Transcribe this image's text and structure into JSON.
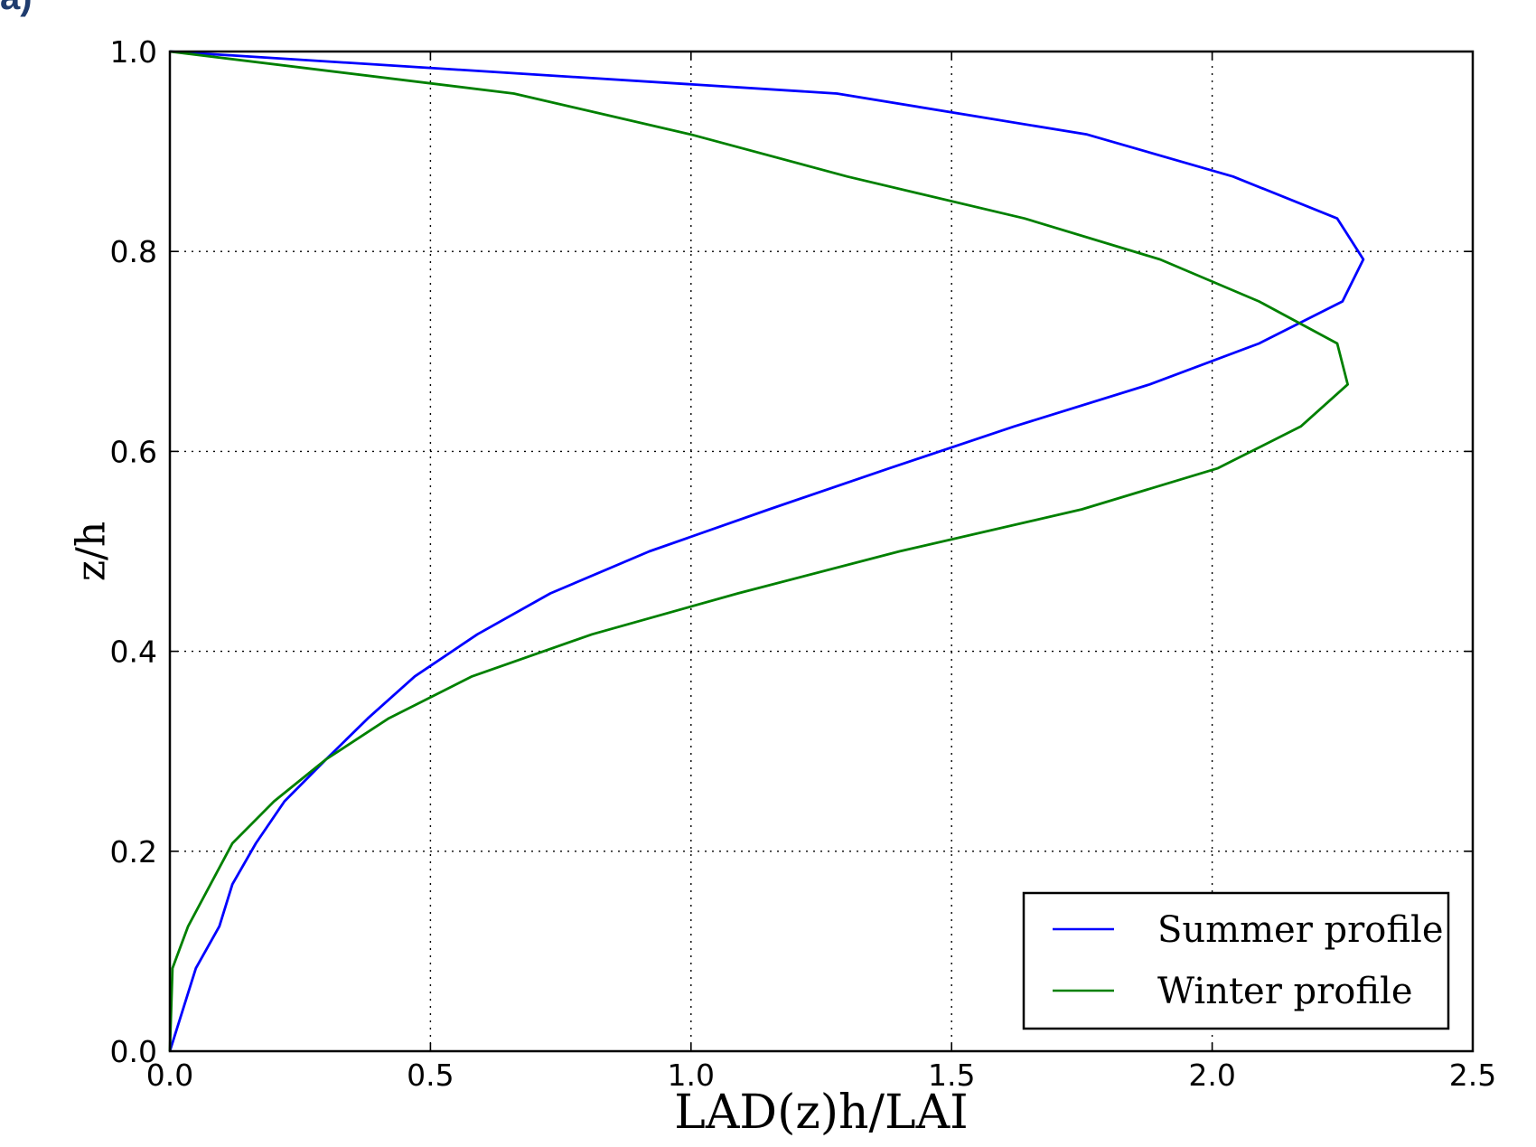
{
  "corner_fragment": "a)",
  "chart_data": {
    "type": "line",
    "title": "",
    "xlabel": "LAD(z)h/LAI",
    "ylabel": "z/h",
    "xlim": [
      0.0,
      2.5
    ],
    "ylim": [
      0.0,
      1.0
    ],
    "xticks": [
      0.0,
      0.5,
      1.0,
      1.5,
      2.0,
      2.5
    ],
    "yticks": [
      0.0,
      0.2,
      0.4,
      0.6,
      0.8,
      1.0
    ],
    "xtick_labels": [
      "0.0",
      "0.5",
      "1.0",
      "1.5",
      "2.0",
      "2.5"
    ],
    "ytick_labels": [
      "0.0",
      "0.2",
      "0.4",
      "0.6",
      "0.8",
      "1.0"
    ],
    "grid": true,
    "grid_style": "dotted",
    "legend_position": "lower-right",
    "series": [
      {
        "name": "Summer profile",
        "color": "#0000ff",
        "points": [
          [
            0.0,
            0.0
          ],
          [
            0.05,
            0.083
          ],
          [
            0.095,
            0.125
          ],
          [
            0.12,
            0.167
          ],
          [
            0.165,
            0.208
          ],
          [
            0.22,
            0.25
          ],
          [
            0.3,
            0.292
          ],
          [
            0.38,
            0.333
          ],
          [
            0.47,
            0.375
          ],
          [
            0.59,
            0.417
          ],
          [
            0.73,
            0.458
          ],
          [
            0.92,
            0.5
          ],
          [
            1.15,
            0.542
          ],
          [
            1.38,
            0.583
          ],
          [
            1.62,
            0.625
          ],
          [
            1.88,
            0.667
          ],
          [
            2.09,
            0.708
          ],
          [
            2.25,
            0.75
          ],
          [
            2.29,
            0.792
          ],
          [
            2.24,
            0.833
          ],
          [
            2.04,
            0.875
          ],
          [
            1.76,
            0.917
          ],
          [
            1.28,
            0.958
          ],
          [
            0.0,
            1.0
          ]
        ]
      },
      {
        "name": "Winter profile",
        "color": "#008000",
        "points": [
          [
            0.0,
            0.0
          ],
          [
            0.005,
            0.083
          ],
          [
            0.035,
            0.125
          ],
          [
            0.12,
            0.208
          ],
          [
            0.2,
            0.25
          ],
          [
            0.3,
            0.292
          ],
          [
            0.42,
            0.333
          ],
          [
            0.58,
            0.375
          ],
          [
            0.81,
            0.417
          ],
          [
            1.09,
            0.458
          ],
          [
            1.4,
            0.5
          ],
          [
            1.75,
            0.542
          ],
          [
            2.01,
            0.583
          ],
          [
            2.17,
            0.625
          ],
          [
            2.26,
            0.667
          ],
          [
            2.24,
            0.708
          ],
          [
            2.09,
            0.75
          ],
          [
            1.9,
            0.792
          ],
          [
            1.64,
            0.833
          ],
          [
            1.3,
            0.875
          ],
          [
            1.0,
            0.917
          ],
          [
            0.66,
            0.958
          ],
          [
            0.0,
            1.0
          ]
        ]
      }
    ]
  }
}
